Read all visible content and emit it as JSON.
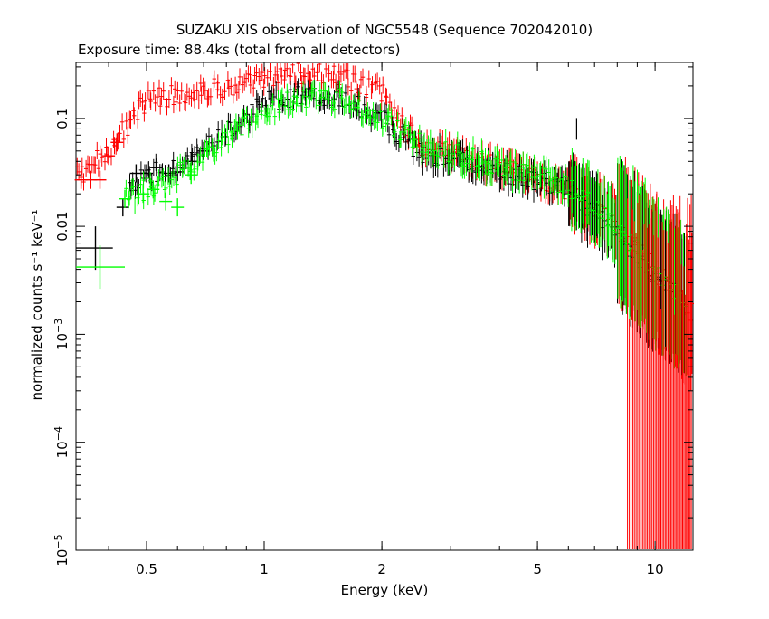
{
  "chart_data": {
    "type": "scatter",
    "title": "SUZAKU XIS observation of NGC5548 (Sequence 702042010)",
    "subtitle": "Exposure time: 88.4ks (total from all detectors)",
    "xlabel": "Energy (keV)",
    "ylabel": "normalized counts s⁻¹ keV⁻¹",
    "x_scale": "log",
    "y_scale": "log",
    "xlim": [
      0.33,
      12.5
    ],
    "ylim": [
      1e-05,
      0.33
    ],
    "grid": false,
    "x_ticks": [
      {
        "value": 0.5,
        "label": "0.5"
      },
      {
        "value": 1,
        "label": "1"
      },
      {
        "value": 2,
        "label": "2"
      },
      {
        "value": 5,
        "label": "5"
      },
      {
        "value": 10,
        "label": "10"
      }
    ],
    "y_ticks": [
      {
        "value": 0.1,
        "label": "0.1"
      },
      {
        "value": 0.01,
        "label": "0.01"
      },
      {
        "value": 0.001,
        "mantissa": "10",
        "exponent": "−3"
      },
      {
        "value": 0.0001,
        "mantissa": "10",
        "exponent": "−4"
      },
      {
        "value": 1e-05,
        "mantissa": "10",
        "exponent": "−5"
      }
    ],
    "series": [
      {
        "color": "#ff0000",
        "curve": [
          {
            "x": 0.33,
            "y": 0.028
          },
          {
            "x": 0.4,
            "y": 0.05
          },
          {
            "x": 0.5,
            "y": 0.15
          },
          {
            "x": 1.0,
            "y": 0.22
          },
          {
            "x": 1.2,
            "y": 0.26
          },
          {
            "x": 1.5,
            "y": 0.25
          },
          {
            "x": 2.0,
            "y": 0.17
          },
          {
            "x": 2.5,
            "y": 0.055
          },
          {
            "x": 4.0,
            "y": 0.035
          },
          {
            "x": 6.0,
            "y": 0.022
          },
          {
            "x": 8.0,
            "y": 0.01
          },
          {
            "x": 10.0,
            "y": 0.004
          },
          {
            "x": 12.5,
            "y": 0.0015
          }
        ],
        "low_energy_points": [
          {
            "x": 0.34,
            "y": 0.027
          },
          {
            "x": 0.36,
            "y": 0.027
          },
          {
            "x": 0.38,
            "y": 0.027
          },
          {
            "x": 0.4,
            "y": 0.045
          },
          {
            "x": 0.42,
            "y": 0.06
          }
        ]
      },
      {
        "color": "#000000",
        "curve": [
          {
            "x": 0.45,
            "y": 0.02
          },
          {
            "x": 0.5,
            "y": 0.03
          },
          {
            "x": 0.6,
            "y": 0.035
          },
          {
            "x": 0.7,
            "y": 0.05
          },
          {
            "x": 1.0,
            "y": 0.14
          },
          {
            "x": 1.3,
            "y": 0.17
          },
          {
            "x": 1.6,
            "y": 0.15
          },
          {
            "x": 2.0,
            "y": 0.1
          },
          {
            "x": 2.5,
            "y": 0.05
          },
          {
            "x": 4.0,
            "y": 0.032
          },
          {
            "x": 6.0,
            "y": 0.022
          },
          {
            "x": 8.0,
            "y": 0.009
          },
          {
            "x": 10.0,
            "y": 0.0035
          },
          {
            "x": 12.0,
            "y": 0.002
          }
        ],
        "low_energy_points": [
          {
            "x": 0.37,
            "y": 0.0063,
            "xerr": [
              0.33,
              0.41
            ]
          },
          {
            "x": 0.435,
            "y": 0.015
          },
          {
            "x": 0.47,
            "y": 0.031
          },
          {
            "x": 0.5,
            "y": 0.031
          },
          {
            "x": 0.53,
            "y": 0.035
          },
          {
            "x": 0.57,
            "y": 0.031
          },
          {
            "x": 0.6,
            "y": 0.032
          },
          {
            "x": 0.65,
            "y": 0.04
          },
          {
            "x": 0.7,
            "y": 0.05
          }
        ]
      },
      {
        "color": "#00ff00",
        "curve": [
          {
            "x": 0.44,
            "y": 0.018
          },
          {
            "x": 0.5,
            "y": 0.022
          },
          {
            "x": 0.6,
            "y": 0.03
          },
          {
            "x": 0.7,
            "y": 0.045
          },
          {
            "x": 1.0,
            "y": 0.12
          },
          {
            "x": 1.3,
            "y": 0.16
          },
          {
            "x": 1.6,
            "y": 0.15
          },
          {
            "x": 2.0,
            "y": 0.1
          },
          {
            "x": 2.5,
            "y": 0.06
          },
          {
            "x": 4.0,
            "y": 0.035
          },
          {
            "x": 6.0,
            "y": 0.024
          },
          {
            "x": 8.0,
            "y": 0.01
          },
          {
            "x": 10.0,
            "y": 0.004
          },
          {
            "x": 12.0,
            "y": 0.0018
          }
        ],
        "low_energy_points": [
          {
            "x": 0.38,
            "y": 0.0042,
            "xerr": [
              0.33,
              0.44
            ]
          },
          {
            "x": 0.44,
            "y": 0.018
          },
          {
            "x": 0.49,
            "y": 0.02
          },
          {
            "x": 0.52,
            "y": 0.022
          },
          {
            "x": 0.56,
            "y": 0.017
          },
          {
            "x": 0.6,
            "y": 0.015
          },
          {
            "x": 0.65,
            "y": 0.03
          }
        ]
      }
    ],
    "features": [
      {
        "x": 6.3,
        "y": 0.08,
        "color": "#000000"
      }
    ]
  }
}
